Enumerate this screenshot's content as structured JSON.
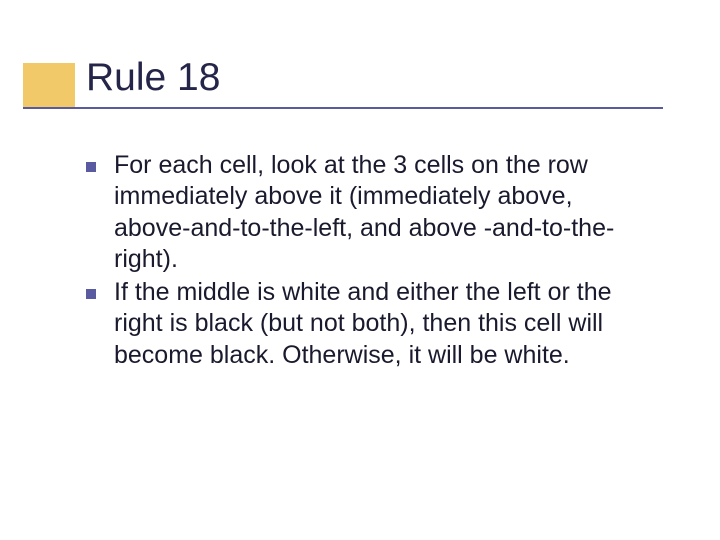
{
  "slide": {
    "title": "Rule 18",
    "title_color": "#25254a",
    "title_fontsize": 39,
    "accent_block_color": "#f2c968",
    "underline_color": "#5a5aa0",
    "bullet_color": "#5a5aa0",
    "bullet_size": 10,
    "body_color": "#1a1a2e",
    "body_fontsize": 25,
    "background_color": "#ffffff",
    "bullets": [
      "For each cell, look at the 3 cells on the row immediately above it (immediately above, above-and-to-the-left, and above -and-to-the-right).",
      "If the middle is white and either the left or the right is black (but not both), then this cell will become black.  Otherwise, it will be white."
    ]
  }
}
